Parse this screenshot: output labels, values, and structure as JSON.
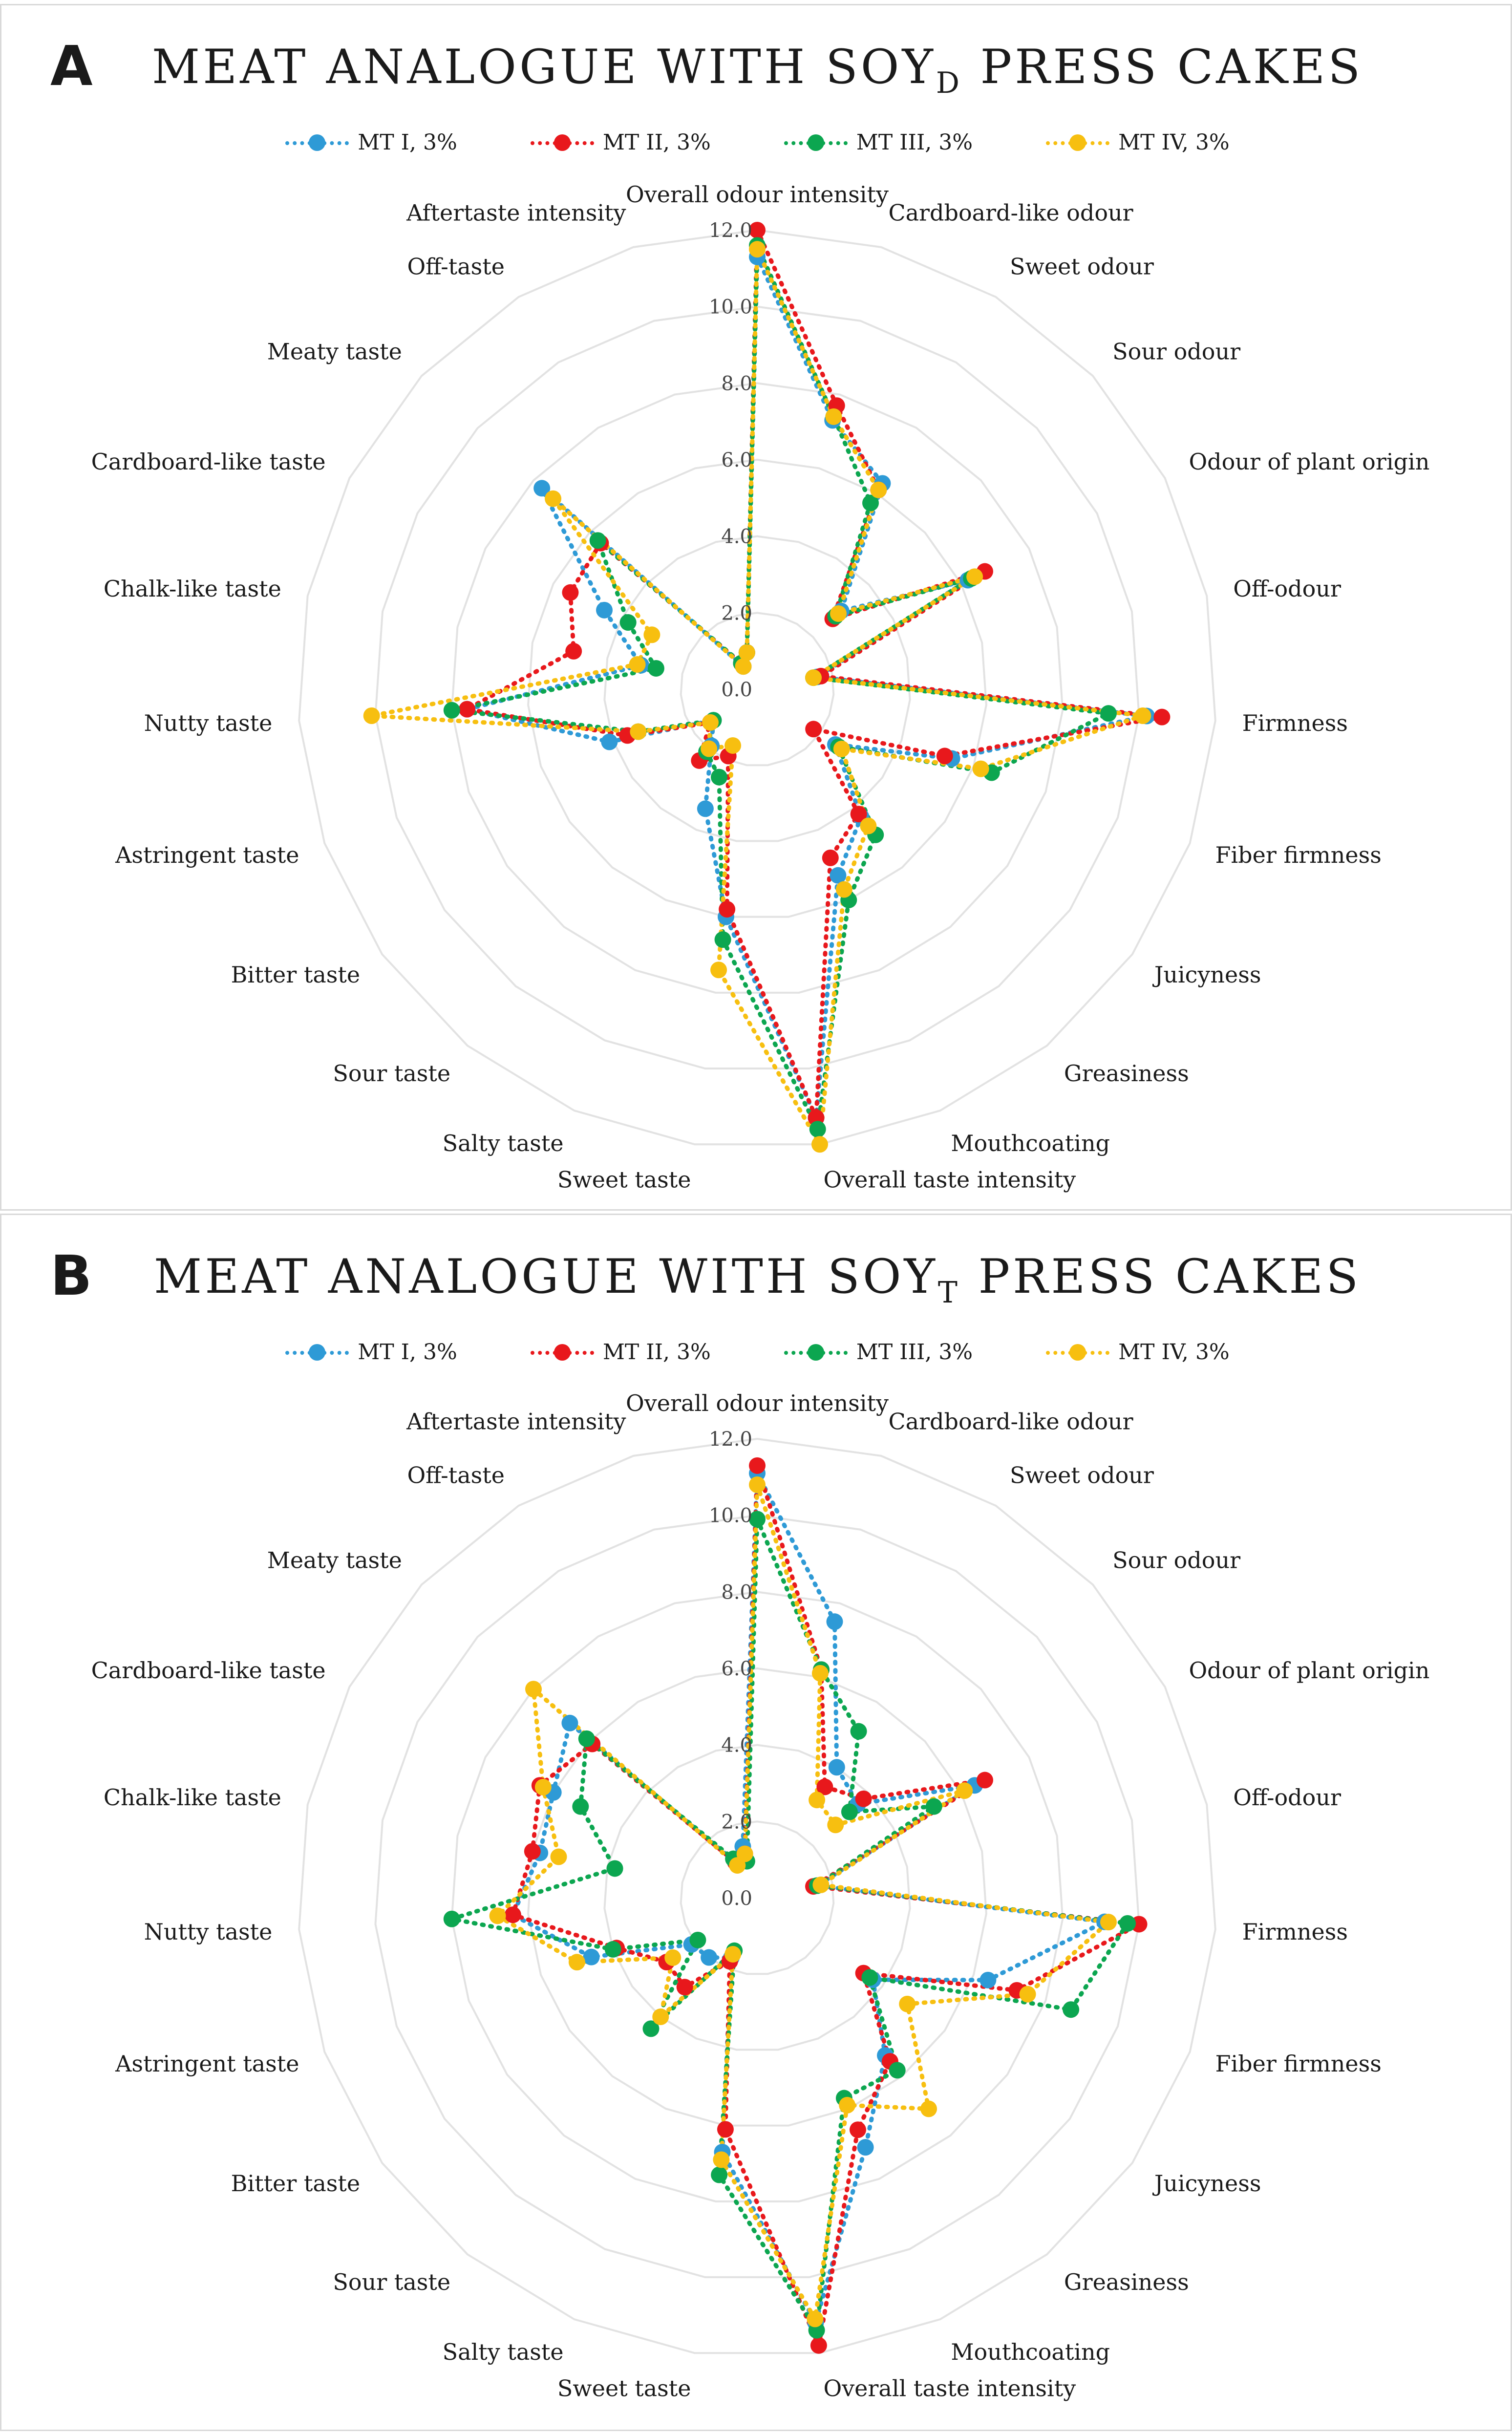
{
  "colors": {
    "MT I, 3%": "#2e9ad6",
    "MT II, 3%": "#e8181c",
    "MT III, 3%": "#0ca650",
    "MT IV, 3%": "#f7bf10",
    "grid": "#e2e2e2"
  },
  "chart_data": [
    {
      "type": "radar",
      "panel": "A",
      "title_main": "MEAT ANALOGUE WITH SOY",
      "title_sub": "D",
      "title_tail": " PRESS CAKES",
      "axis_range": [
        0,
        12
      ],
      "ticks": [
        "0.0",
        "2.0",
        "4.0",
        "6.0",
        "8.0",
        "10.0",
        "12.0"
      ],
      "tick_values": [
        0,
        2,
        4,
        6,
        8,
        10,
        12
      ],
      "categories": [
        "Overall odour intensity",
        "Cardboard-like odour",
        "Sweet odour",
        "Sour odour",
        "Odour of plant origin",
        "Off-odour",
        "Firmness",
        "Fiber firmness",
        "Juicyness",
        "Greasiness",
        "Mouthcoating",
        "Overall taste intensity",
        "Sweet taste",
        "Salty taste",
        "Sour taste",
        "Bitter taste",
        "Astringent taste",
        "Nutty taste",
        "Chalk-like taste",
        "Cardboard-like taste",
        "Meaty taste",
        "Off-taste",
        "Aftertaste intensity"
      ],
      "series": [
        {
          "name": "MT I, 3%",
          "values": [
            11.3,
            7.3,
            6.3,
            3.0,
            6.2,
            1.6,
            10.2,
            5.4,
            2.5,
            4.3,
            5.3,
            11.3,
            6.0,
            3.4,
            1.9,
            1.4,
            4.1,
            7.6,
            3.1,
            4.5,
            7.7,
            0.7,
            1.0
          ]
        },
        {
          "name": "MT II, 3%",
          "values": [
            12.0,
            7.7,
            6.1,
            2.7,
            6.7,
            1.7,
            10.6,
            5.2,
            1.8,
            4.2,
            4.8,
            11.3,
            5.8,
            1.9,
            2.4,
            1.5,
            3.6,
            7.6,
            4.9,
            5.5,
            5.6,
            0.8,
            1.0
          ]
        },
        {
          "name": "MT III, 3%",
          "values": [
            11.6,
            7.4,
            5.7,
            2.8,
            6.3,
            1.5,
            9.2,
            6.5,
            2.6,
            4.9,
            6.0,
            11.6,
            6.6,
            2.5,
            2.1,
            1.4,
            3.3,
            8.0,
            2.7,
            3.8,
            5.7,
            0.8,
            1.0
          ]
        },
        {
          "name": "MT IV, 3%",
          "values": [
            11.5,
            7.4,
            6.1,
            2.9,
            6.4,
            1.5,
            10.1,
            6.2,
            2.7,
            4.6,
            5.7,
            12.0,
            7.4,
            1.6,
            2.0,
            1.5,
            3.3,
            10.1,
            3.2,
            3.1,
            7.3,
            0.7,
            1.0
          ]
        }
      ]
    },
    {
      "type": "radar",
      "panel": "B",
      "title_main": "MEAT ANALOGUE WITH SOY",
      "title_sub": "T",
      "title_tail": " PRESS CAKES",
      "axis_range": [
        0,
        12
      ],
      "ticks": [
        "0.0",
        "2.0",
        "4.0",
        "6.0",
        "8.0",
        "10.0",
        "12.0"
      ],
      "tick_values": [
        0,
        2,
        4,
        6,
        8,
        10,
        12
      ],
      "categories": [
        "Overall odour intensity",
        "Cardboard-like odour",
        "Sweet odour",
        "Sour odour",
        "Odour of plant origin",
        "Off-odour",
        "Firmness",
        "Fiber firmness",
        "Juicyness",
        "Greasiness",
        "Mouthcoating",
        "Overall taste intensity",
        "Sweet taste",
        "Salty taste",
        "Sour taste",
        "Bitter taste",
        "Astringent taste",
        "Nutty taste",
        "Chalk-like taste",
        "Cardboard-like taste",
        "Meaty taste",
        "Off-taste",
        "Aftertaste intensity"
      ],
      "series": [
        {
          "name": "MT I, 3%",
          "values": [
            11.1,
            7.5,
            4.0,
            3.6,
            6.4,
            1.6,
            9.1,
            6.4,
            3.7,
            5.3,
            7.1,
            11.2,
            6.7,
            1.7,
            2.0,
            2.1,
            4.6,
            6.4,
            5.8,
            6.0,
            6.7,
            1.1,
            1.4
          ]
        },
        {
          "name": "MT II, 3%",
          "values": [
            11.3,
            6.2,
            3.4,
            3.8,
            6.7,
            1.5,
            10.0,
            7.2,
            3.4,
            5.5,
            6.6,
            11.8,
            6.1,
            1.8,
            3.0,
            2.9,
            3.9,
            6.4,
            6.0,
            6.4,
            5.9,
            1.1,
            1.2
          ]
        },
        {
          "name": "MT III, 3%",
          "values": [
            9.9,
            6.2,
            5.1,
            3.3,
            5.2,
            1.6,
            9.7,
            8.7,
            3.6,
            5.8,
            5.7,
            11.4,
            7.3,
            1.5,
            4.4,
            1.9,
            4.0,
            8.0,
            3.8,
            5.2,
            6.1,
            1.2,
            1.0
          ]
        },
        {
          "name": "MT IV, 3%",
          "values": [
            10.8,
            6.1,
            3.0,
            2.8,
            6.1,
            1.7,
            9.2,
            7.5,
            4.8,
            7.1,
            5.9,
            11.1,
            6.9,
            1.6,
            4.0,
            2.7,
            5.0,
            6.8,
            5.3,
            6.3,
            8.0,
            1.0,
            1.2
          ]
        }
      ]
    }
  ]
}
